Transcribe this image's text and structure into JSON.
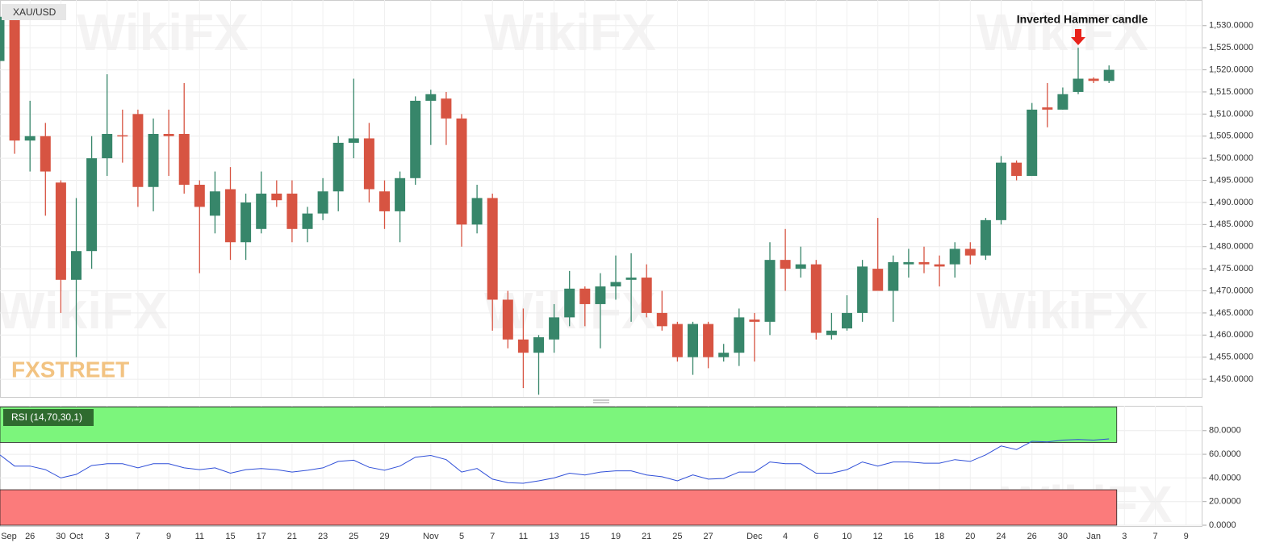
{
  "chart_data": [
    {
      "type": "candlestick",
      "title": "XAU/USD",
      "annotation": "Inverted Hammer candle",
      "watermark": "WikiFX",
      "logo": "FXSTREET",
      "up_color": "#37866a",
      "down_color": "#d75442",
      "grid": true,
      "categories": [
        "Sep",
        null,
        "26",
        null,
        "30",
        "Oct",
        null,
        "3",
        null,
        "7",
        null,
        "9",
        null,
        "11",
        null,
        "15",
        null,
        "17",
        null,
        "21",
        null,
        "23",
        null,
        "25",
        null,
        "29",
        null,
        null,
        "Nov",
        null,
        "5",
        null,
        "7",
        null,
        "11",
        null,
        "13",
        null,
        "15",
        null,
        "19",
        null,
        "21",
        null,
        "25",
        null,
        "27",
        null,
        null,
        "Dec",
        null,
        "4",
        null,
        "6",
        null,
        "10",
        null,
        "12",
        null,
        "16",
        null,
        "18",
        null,
        "20",
        null,
        "24",
        null,
        "26",
        null,
        "30",
        null,
        "Jan",
        null,
        "3",
        null,
        "7",
        null,
        "9"
      ],
      "open": [
        1522,
        1532,
        1504,
        1505,
        1494.5,
        1472.5,
        1479,
        1500,
        1505.2,
        1510,
        1493.5,
        1505.5,
        1505.5,
        1494,
        1487,
        1493,
        1481,
        1484,
        1492,
        1492,
        1484,
        1487.5,
        1492.5,
        1503.5,
        1504.5,
        1492.5,
        1488,
        1495.5,
        1513,
        1513.5,
        1509,
        1485,
        1491,
        1468,
        1459,
        1456,
        1459,
        1464,
        1470.5,
        1467,
        1471,
        1472.5,
        1473,
        1465,
        1462.5,
        1455,
        1462.5,
        1455,
        1456,
        1463.5,
        1463,
        1477,
        1475,
        1476,
        1460,
        1461.5,
        1465,
        1475,
        1470,
        1476,
        1476.5,
        1476,
        1476,
        1479.5,
        1478,
        1486,
        1499,
        1496,
        1511.5,
        1511,
        1515,
        1518,
        1517.5,
        null,
        null,
        null,
        null,
        null
      ],
      "high": [
        1535,
        1534,
        1513,
        1508,
        1495,
        1491,
        1505,
        1519,
        1511,
        1511,
        1509,
        1511,
        1517,
        1495,
        1497,
        1498,
        1492,
        1497,
        1495,
        1495,
        1489,
        1495.5,
        1505,
        1518,
        1508,
        1495,
        1497,
        1514,
        1515.5,
        1515,
        1510,
        1494,
        1492,
        1470,
        1466,
        1460,
        1467,
        1474.5,
        1471,
        1474,
        1478,
        1478.5,
        1476,
        1470,
        1463,
        1463,
        1463,
        1458,
        1466,
        1465,
        1481,
        1484,
        1480,
        1477,
        1465,
        1469,
        1477,
        1486.5,
        1478,
        1479.5,
        1480,
        1478,
        1481,
        1481,
        1486.5,
        1500.5,
        1499.5,
        1512.5,
        1517,
        1516,
        1525,
        1518.3,
        1521,
        null,
        null,
        null,
        null,
        null
      ],
      "low": [
        1512,
        1501,
        1497,
        1487,
        1465,
        1455,
        1475,
        1496,
        1499,
        1489,
        1488,
        1496,
        1492,
        1474,
        1483,
        1477,
        1477,
        1483,
        1489,
        1481,
        1481,
        1486,
        1488,
        1500,
        1490,
        1484,
        1481,
        1494,
        1503,
        1503,
        1480,
        1483,
        1461,
        1457,
        1448,
        1446.5,
        1456,
        1462,
        1462,
        1457,
        1468,
        1463,
        1464,
        1461,
        1454,
        1451,
        1452.5,
        1454,
        1453,
        1454,
        1460,
        1470,
        1473,
        1459,
        1459,
        1461,
        1463,
        1470,
        1463,
        1473,
        1474,
        1471,
        1473,
        1476,
        1477,
        1485,
        1495,
        1496,
        1507,
        1511,
        1514.5,
        1517,
        1517,
        null,
        null,
        null,
        null,
        null
      ],
      "close": [
        1532,
        1504,
        1505,
        1497,
        1472.5,
        1479,
        1500,
        1505.5,
        1505,
        1493.5,
        1505.5,
        1505,
        1494,
        1489,
        1492.5,
        1481,
        1490,
        1492,
        1490.5,
        1484,
        1487.5,
        1492.5,
        1503.5,
        1504.5,
        1493,
        1488,
        1495.5,
        1513,
        1514.5,
        1509,
        1485,
        1491,
        1468,
        1459,
        1456,
        1459.5,
        1464,
        1470.5,
        1467,
        1471,
        1472,
        1473,
        1465,
        1462,
        1455,
        1462.5,
        1455,
        1456,
        1464,
        1463,
        1477,
        1475,
        1476,
        1460.5,
        1461,
        1465,
        1475.5,
        1470,
        1476.5,
        1476.5,
        1476,
        1475.5,
        1479.5,
        1478,
        1486,
        1499,
        1496,
        1511,
        1511,
        1514.5,
        1518,
        1517.5,
        1520,
        null,
        null,
        null,
        null,
        null
      ],
      "ylim": [
        1446,
        1535.8
      ],
      "yticks": [
        {
          "value": 1450,
          "label": "1,450.0000"
        },
        {
          "value": 1455,
          "label": "1,455.0000"
        },
        {
          "value": 1460,
          "label": "1,460.0000"
        },
        {
          "value": 1465,
          "label": "1,465.0000"
        },
        {
          "value": 1470,
          "label": "1,470.0000"
        },
        {
          "value": 1475,
          "label": "1,475.0000"
        },
        {
          "value": 1480,
          "label": "1,480.0000"
        },
        {
          "value": 1485,
          "label": "1,485.0000"
        },
        {
          "value": 1490,
          "label": "1,490.0000"
        },
        {
          "value": 1495,
          "label": "1,495.0000"
        },
        {
          "value": 1500,
          "label": "1,500.0000"
        },
        {
          "value": 1505,
          "label": "1,505.0000"
        },
        {
          "value": 1510,
          "label": "1,510.0000"
        },
        {
          "value": 1515,
          "label": "1,515.0000"
        },
        {
          "value": 1520,
          "label": "1,520.0000"
        },
        {
          "value": 1525,
          "label": "1,525.0000"
        },
        {
          "value": 1530,
          "label": "1,530.0000"
        }
      ]
    },
    {
      "type": "line",
      "title": "RSI (14,70,30,1)",
      "color": "#2f4fd8",
      "values": [
        60,
        50,
        50,
        47,
        40,
        43,
        50.5,
        52,
        52,
        48.5,
        52,
        52,
        48.5,
        47,
        48.5,
        44,
        47,
        48,
        47,
        45,
        46.5,
        48.5,
        54,
        55,
        49,
        46.5,
        50,
        57.5,
        59,
        55.5,
        45,
        48,
        39,
        36,
        35.5,
        37.5,
        40,
        44,
        42.5,
        45,
        46,
        46,
        42.5,
        41,
        37.5,
        42.5,
        39,
        39.5,
        45,
        45,
        53.5,
        52,
        52,
        44,
        44,
        47,
        53.5,
        50,
        53.5,
        53.5,
        52.5,
        52.5,
        55.5,
        54,
        59.5,
        67,
        64,
        71,
        70.5,
        72,
        72.5,
        72,
        73,
        null,
        null,
        null,
        null,
        null
      ],
      "zones": [
        {
          "from": 70,
          "to": 100,
          "color": "#7cf57c"
        },
        {
          "from": 0,
          "to": 30,
          "color": "#fb7b7b"
        }
      ],
      "ylim": [
        0,
        101
      ],
      "yticks": [
        {
          "value": 0,
          "label": "0.0000"
        },
        {
          "value": 20,
          "label": "20.0000"
        },
        {
          "value": 40,
          "label": "40.0000"
        },
        {
          "value": 60,
          "label": "60.0000"
        },
        {
          "value": 80,
          "label": "80.0000"
        }
      ]
    }
  ]
}
